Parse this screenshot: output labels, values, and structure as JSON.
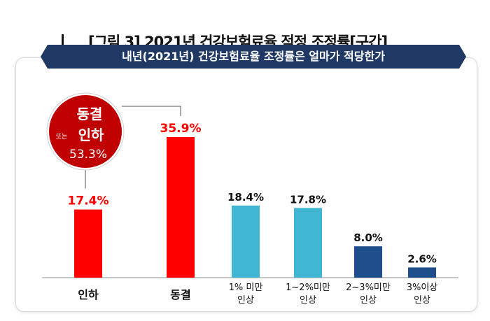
{
  "figure": {
    "title": "[그림 3] 2021년 건강보험료율 적정 조정률[구간]",
    "subtitle": "내년(2021년) 건강보험료율 조정률은 얼마가 적당한가"
  },
  "callout": {
    "line1": "동결",
    "prefix": "또는",
    "line2": "인하",
    "value": "53.3%"
  },
  "colors": {
    "banner": "#1f3864",
    "red": "#ff0000",
    "teal": "#41b6d2",
    "navy": "#1f4e8c",
    "circle": "#c00000"
  },
  "chart_data": {
    "type": "bar",
    "title": "",
    "xlabel": "",
    "ylabel": "",
    "ylim": [
      0,
      40
    ],
    "categories": [
      "인하",
      "동결",
      "1% 미만 인상",
      "1~2%미만 인상",
      "2~3%미만 인상",
      "3%이상 인상"
    ],
    "category_lines": [
      [
        "인하"
      ],
      [
        "동결"
      ],
      [
        "1% 미만",
        "인상"
      ],
      [
        "1~2%미만",
        "인상"
      ],
      [
        "2~3%미만",
        "인상"
      ],
      [
        "3%이상",
        "인상"
      ]
    ],
    "values": [
      17.4,
      35.9,
      18.4,
      17.8,
      8.0,
      2.6
    ],
    "labels": [
      "17.4%",
      "35.9%",
      "18.4%",
      "17.8%",
      "8.0%",
      "2.6%"
    ],
    "bar_colors": [
      "red",
      "red",
      "teal",
      "teal",
      "navy",
      "navy"
    ]
  }
}
